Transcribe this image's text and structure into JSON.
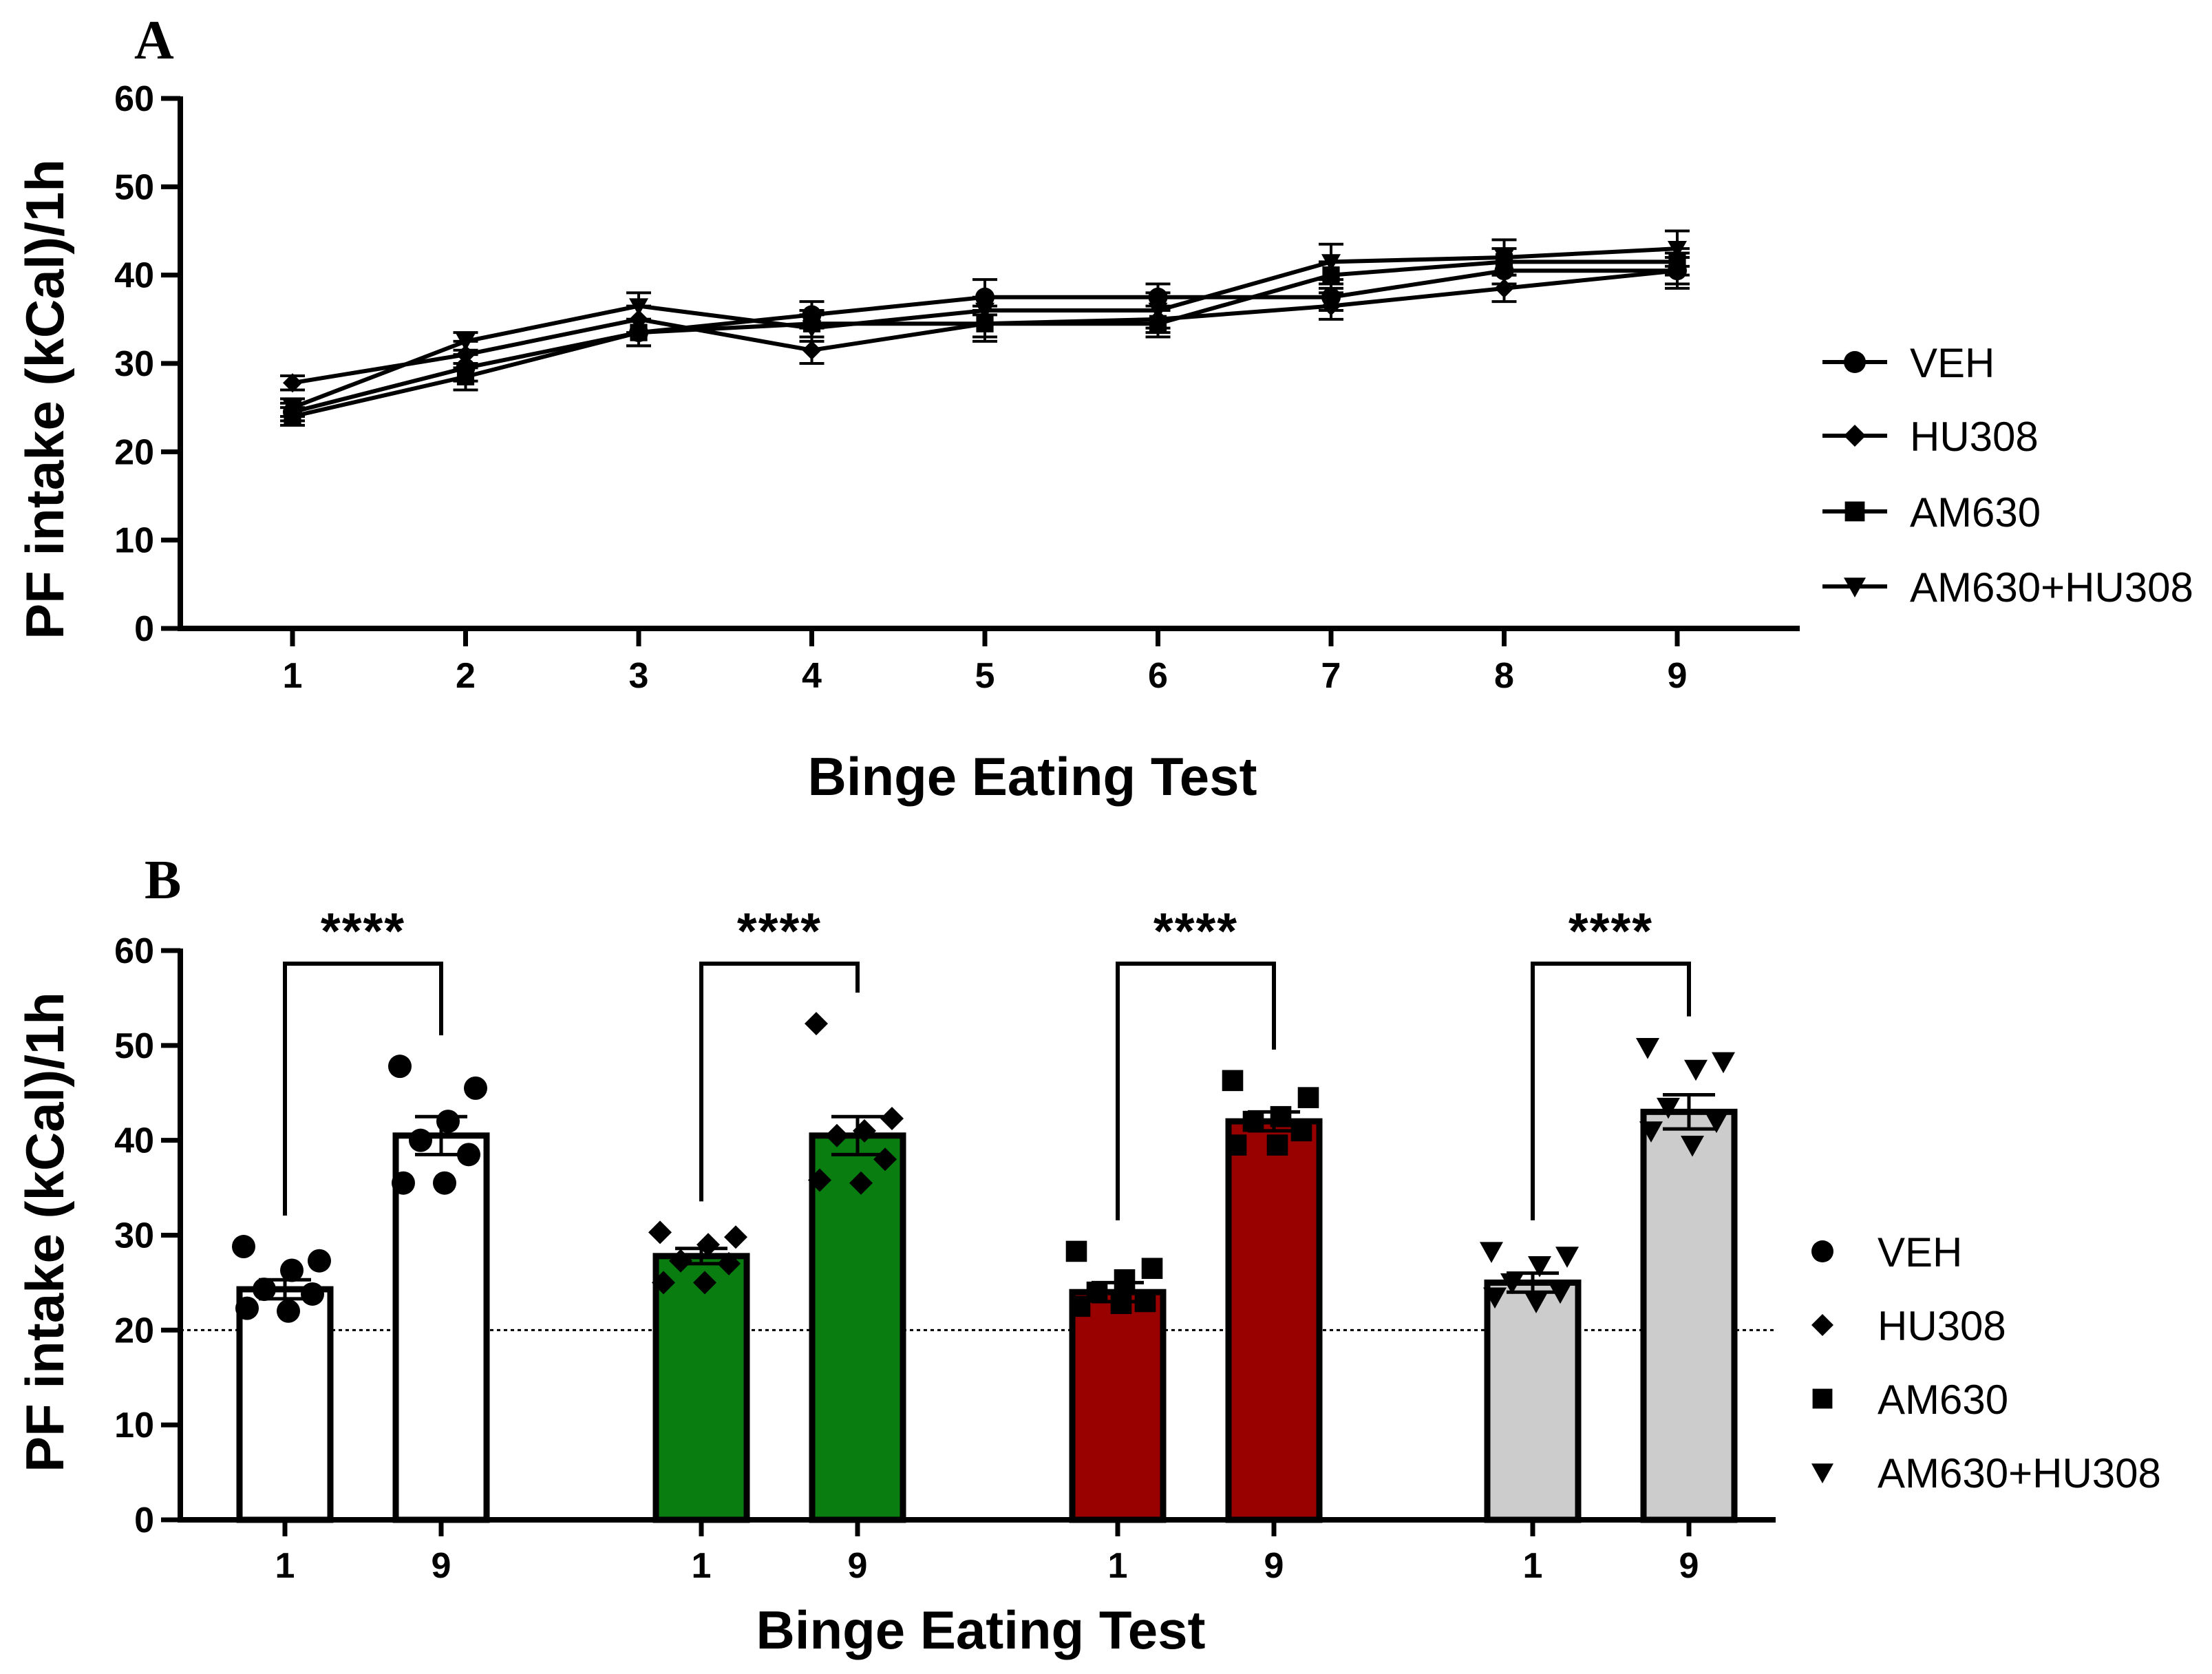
{
  "chart_data": [
    {
      "panel": "A",
      "type": "line",
      "xlabel": "Binge Eating Test",
      "ylabel": "PF intake (kCal)/1h",
      "ylim": [
        0,
        60
      ],
      "yticks": [
        0,
        10,
        20,
        30,
        40,
        50,
        60
      ],
      "x": [
        1,
        2,
        3,
        4,
        5,
        6,
        7,
        8,
        9
      ],
      "legend_position": "right",
      "series": [
        {
          "name": "VEH",
          "marker": "circle",
          "values": [
            24.5,
            29.5,
            33.5,
            35.5,
            37.5,
            37.5,
            37.5,
            40.5,
            40.5
          ],
          "errors": [
            1.0,
            1.5,
            1.5,
            1.5,
            2.0,
            1.5,
            1.5,
            1.5,
            1.5
          ]
        },
        {
          "name": "HU308",
          "marker": "diamond",
          "values": [
            27.8,
            31.0,
            35.0,
            31.5,
            34.5,
            35.0,
            36.5,
            38.5,
            40.5
          ],
          "errors": [
            0.8,
            1.5,
            1.5,
            1.5,
            2.0,
            1.5,
            1.5,
            1.5,
            2.0
          ]
        },
        {
          "name": "AM630",
          "marker": "square",
          "values": [
            24.0,
            28.5,
            33.5,
            34.5,
            34.5,
            34.5,
            40.0,
            41.5,
            41.5
          ],
          "errors": [
            1.0,
            1.5,
            1.5,
            1.5,
            1.5,
            1.5,
            1.5,
            1.5,
            1.5
          ]
        },
        {
          "name": "AM630+HU308",
          "marker": "triangle-down",
          "values": [
            25.0,
            32.5,
            36.5,
            34.0,
            36.0,
            36.0,
            41.5,
            42.0,
            43.0
          ],
          "errors": [
            1.0,
            1.0,
            1.5,
            1.5,
            1.5,
            2.0,
            2.0,
            2.0,
            2.0
          ]
        }
      ]
    },
    {
      "panel": "B",
      "type": "bar",
      "xlabel": "Binge Eating Test",
      "ylabel": "PF intake (kCal)/1h",
      "ylim": [
        0,
        60
      ],
      "yticks": [
        0,
        10,
        20,
        30,
        40,
        50,
        60
      ],
      "reference_line": 20,
      "significance": "****",
      "legend_position": "right",
      "groups": [
        {
          "name": "VEH",
          "marker": "circle",
          "color": "#ffffff",
          "bars": [
            {
              "tick": "1",
              "mean": 24.3,
              "sem": 1.0,
              "points": [
                28.8,
                27.3,
                26.3,
                24.3,
                23.8,
                22.3,
                22.0
              ]
            },
            {
              "tick": "9",
              "mean": 40.5,
              "sem": 2.0,
              "points": [
                47.8,
                45.5,
                42.0,
                40.0,
                38.5,
                35.5,
                35.5
              ]
            }
          ]
        },
        {
          "name": "HU308",
          "marker": "diamond",
          "color": "#0a7d10",
          "bars": [
            {
              "tick": "1",
              "mean": 27.8,
              "sem": 0.8,
              "points": [
                30.3,
                29.8,
                29.0,
                27.3,
                27.0,
                25.0,
                25.0
              ]
            },
            {
              "tick": "9",
              "mean": 40.5,
              "sem": 2.0,
              "points": [
                52.3,
                42.3,
                41.0,
                40.5,
                38.0,
                35.8,
                35.5
              ]
            }
          ]
        },
        {
          "name": "AM630",
          "marker": "square",
          "color": "#990000",
          "bars": [
            {
              "tick": "1",
              "mean": 24.0,
              "sem": 1.0,
              "points": [
                28.3,
                26.5,
                25.3,
                24.0,
                23.0,
                22.5,
                22.8
              ]
            },
            {
              "tick": "9",
              "mean": 42.0,
              "sem": 1.0,
              "points": [
                46.3,
                44.5,
                42.5,
                42.0,
                41.0,
                39.5,
                39.5
              ]
            }
          ]
        },
        {
          "name": "AM630+HU308",
          "marker": "triangle-down",
          "color": "#cccccc",
          "bars": [
            {
              "tick": "1",
              "mean": 25.0,
              "sem": 1.0,
              "points": [
                28.3,
                27.8,
                26.8,
                25.0,
                24.0,
                23.5,
                23.0
              ]
            },
            {
              "tick": "9",
              "mean": 43.0,
              "sem": 1.8,
              "points": [
                49.8,
                48.3,
                47.5,
                43.5,
                42.0,
                41.0,
                39.5
              ]
            }
          ]
        }
      ]
    }
  ]
}
